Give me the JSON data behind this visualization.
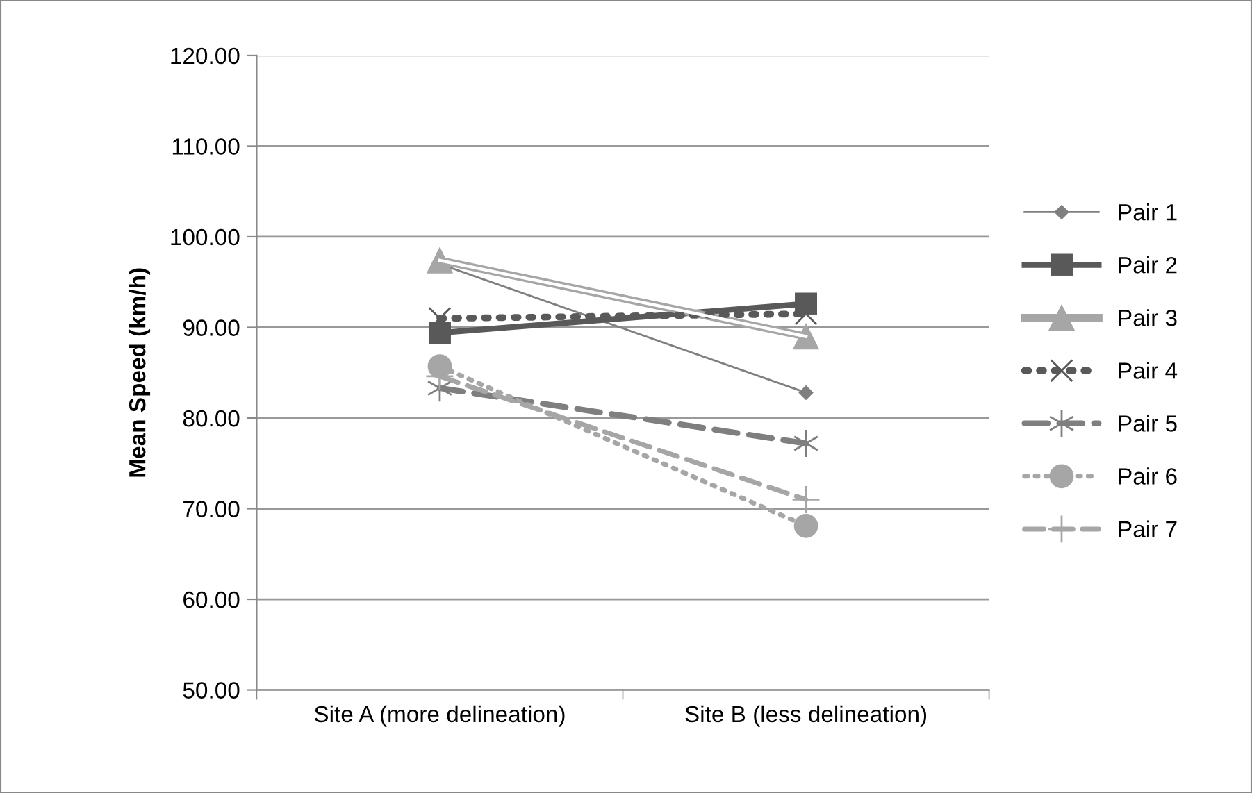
{
  "chart_data": {
    "type": "line",
    "ylabel": "Mean Speed (km/h)",
    "categories": [
      "Site A (more delineation)",
      "Site B (less delineation)"
    ],
    "ylim": [
      50,
      120
    ],
    "yticks": [
      {
        "value": 50,
        "label": "50.00"
      },
      {
        "value": 60,
        "label": "60.00"
      },
      {
        "value": 70,
        "label": "70.00"
      },
      {
        "value": 80,
        "label": "80.00"
      },
      {
        "value": 90,
        "label": "90.00"
      },
      {
        "value": 100,
        "label": "100.00"
      },
      {
        "value": 110,
        "label": "110.00"
      },
      {
        "value": 120,
        "label": "120.00"
      }
    ],
    "grid": "y",
    "legend": "right",
    "series": [
      {
        "name": "Pair 1",
        "color": "#7f7f7f",
        "values": [
          97.0,
          82.8
        ],
        "marker": "diamond",
        "line_style": "solid"
      },
      {
        "name": "Pair 2",
        "color": "#595959",
        "values": [
          89.4,
          92.6
        ],
        "marker": "square",
        "line_style": "solid"
      },
      {
        "name": "Pair 3",
        "color": "#a6a6a6",
        "values": [
          97.4,
          89.0
        ],
        "marker": "triangle",
        "line_style": "solid"
      },
      {
        "name": "Pair 4",
        "color": "#595959",
        "values": [
          91.0,
          91.5
        ],
        "marker": "cross",
        "line_style": "dotted"
      },
      {
        "name": "Pair 5",
        "color": "#7f7f7f",
        "values": [
          83.3,
          77.2
        ],
        "marker": "cross",
        "line_style": "dashed"
      },
      {
        "name": "Pair 6",
        "color": "#a6a6a6",
        "values": [
          85.7,
          68.1
        ],
        "marker": "circle",
        "line_style": "dotted"
      },
      {
        "name": "Pair 7",
        "color": "#a6a6a6",
        "values": [
          84.6,
          71.0
        ],
        "marker": "cross",
        "line_style": "dashed"
      }
    ]
  }
}
